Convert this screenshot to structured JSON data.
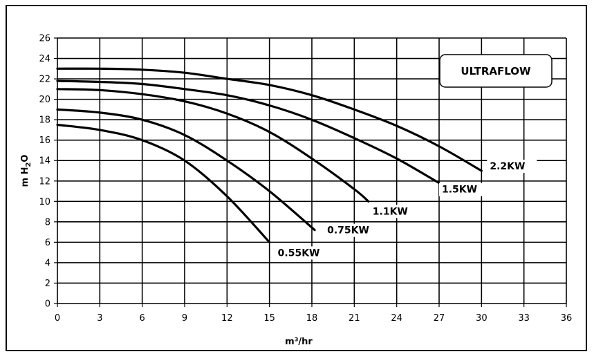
{
  "chart_data": {
    "type": "line",
    "title": "ULTRAFLOW",
    "xlabel": "m³/hr",
    "ylabel_main": "m H",
    "ylabel_sub": "2",
    "ylabel_end": "O",
    "xlim": [
      0,
      36
    ],
    "ylim": [
      0,
      26
    ],
    "x_ticks": [
      "0",
      "3",
      "6",
      "9",
      "12",
      "15",
      "18",
      "21",
      "24",
      "27",
      "30",
      "33",
      "36"
    ],
    "y_ticks": [
      "0",
      "2",
      "4",
      "6",
      "8",
      "10",
      "12",
      "14",
      "16",
      "18",
      "20",
      "22",
      "24",
      "26"
    ],
    "grid": true,
    "series": [
      {
        "name": "0.55KW",
        "x": [
          0,
          3,
          6,
          9,
          12,
          15
        ],
        "y": [
          17.5,
          17.0,
          16.0,
          14.0,
          10.5,
          6.0
        ]
      },
      {
        "name": "0.75KW",
        "x": [
          0,
          3,
          6,
          9,
          12,
          15,
          18.2
        ],
        "y": [
          19.0,
          18.7,
          18.0,
          16.5,
          14.0,
          11.0,
          7.2
        ]
      },
      {
        "name": "1.1KW",
        "x": [
          0,
          3,
          6,
          9,
          12,
          15,
          18,
          21,
          22
        ],
        "y": [
          21.0,
          20.9,
          20.5,
          19.8,
          18.6,
          16.8,
          14.2,
          11.2,
          10.0
        ]
      },
      {
        "name": "1.5KW",
        "x": [
          0,
          3,
          6,
          9,
          12,
          15,
          18,
          21,
          24,
          27
        ],
        "y": [
          21.8,
          21.7,
          21.5,
          21.0,
          20.4,
          19.4,
          18.0,
          16.2,
          14.2,
          11.8
        ]
      },
      {
        "name": "2.2KW",
        "x": [
          0,
          3,
          6,
          9,
          12,
          15,
          18,
          21,
          24,
          27,
          30
        ],
        "y": [
          23.0,
          23.0,
          22.9,
          22.6,
          22.0,
          21.4,
          20.4,
          19.0,
          17.4,
          15.4,
          13.0
        ]
      }
    ]
  }
}
